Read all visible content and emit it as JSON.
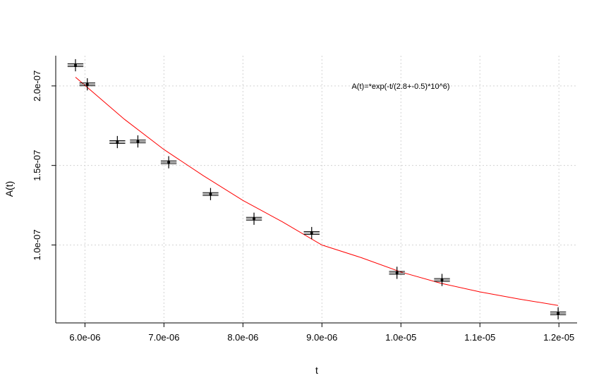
{
  "chart_data": {
    "type": "scatter",
    "xlabel": "t",
    "ylabel": "A(t)",
    "xlim": [
      5.63e-06,
      1.223e-05
    ],
    "ylim": [
      5.1e-08,
      2.19e-07
    ],
    "grid": true,
    "x_ticks": [
      {
        "value": 6e-06,
        "label": "6.0e-06"
      },
      {
        "value": 7e-06,
        "label": "7.0e-06"
      },
      {
        "value": 8e-06,
        "label": "8.0e-06"
      },
      {
        "value": 9e-06,
        "label": "9.0e-06"
      },
      {
        "value": 1e-05,
        "label": "1.0e-05"
      },
      {
        "value": 1.1e-05,
        "label": "1.1e-05"
      },
      {
        "value": 1.2e-05,
        "label": "1.2e-05"
      }
    ],
    "y_ticks": [
      {
        "value": 1e-07,
        "label": "1.0e-07"
      },
      {
        "value": 1.5e-07,
        "label": "1.5e-07"
      },
      {
        "value": 2e-07,
        "label": "2.0e-07"
      }
    ],
    "annotation": "A(t)=*exp(-t/(2.8+-0.5)*10^6)",
    "series": [
      {
        "kind": "points",
        "color": "#000000",
        "x": [
          5.88e-06,
          6.03e-06,
          6.41e-06,
          6.67e-06,
          7.06e-06,
          7.59e-06,
          8.14e-06,
          8.87e-06,
          9.95e-06,
          1.052e-05,
          1.199e-05
        ],
        "y": [
          2.13e-07,
          2.01e-07,
          1.647e-07,
          1.651e-07,
          1.52e-07,
          1.32e-07,
          1.165e-07,
          1.075e-07,
          8.25e-08,
          7.8e-08,
          5.7e-08
        ],
        "x_err": [
          1e-07,
          1e-07,
          1e-07,
          1e-07,
          1e-07,
          1e-07,
          1e-07,
          1e-07,
          1e-07,
          1e-07,
          1e-07
        ],
        "y_err": [
          2.5e-09,
          2.5e-09,
          2.5e-09,
          2.5e-09,
          2.5e-09,
          2.5e-09,
          2.5e-09,
          2.5e-09,
          2.5e-09,
          2.5e-09,
          2.5e-09
        ]
      },
      {
        "kind": "fit-curve",
        "color": "#ff0000",
        "x": [
          5.88e-06,
          6.5e-06,
          7e-06,
          7.5e-06,
          8e-06,
          8.5e-06,
          9e-06,
          9.5e-06,
          1e-05,
          1.05e-05,
          1.1e-05,
          1.15e-05,
          1.199e-05
        ],
        "y": [
          2.055e-07,
          1.79e-07,
          1.6e-07,
          1.435e-07,
          1.28e-07,
          1.145e-07,
          1e-07,
          9.2e-08,
          8.3e-08,
          7.6e-08,
          7.05e-08,
          6.6e-08,
          6.2e-08
        ]
      }
    ]
  }
}
